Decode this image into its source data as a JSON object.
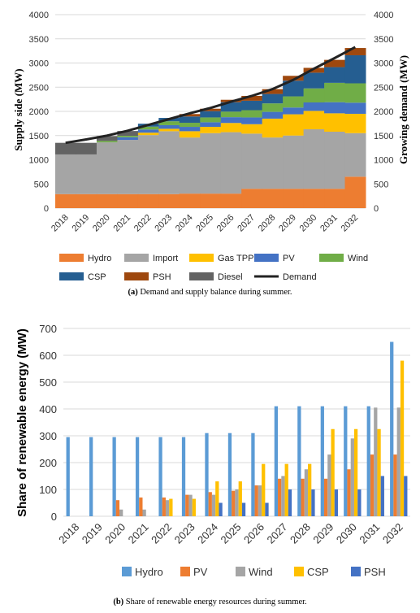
{
  "figure_a": {
    "caption_label": "(a)",
    "caption_text": "Demand and supply balance during summer."
  },
  "figure_b": {
    "caption_label": "(b)",
    "caption_text": "Share of renewable energy resources during summer."
  },
  "chart_data": [
    {
      "type": "area",
      "stacked": true,
      "ylabel": "Supply side (MW)",
      "y2label": "Growing demand (MW)",
      "ylim": [
        0,
        4000
      ],
      "yticks": [
        0,
        500,
        1000,
        1500,
        2000,
        2500,
        3000,
        3500,
        4000
      ],
      "categories": [
        "2018",
        "2019",
        "2020",
        "2021",
        "2022",
        "2023",
        "2024",
        "2025",
        "2026",
        "2027",
        "2028",
        "2029",
        "2030",
        "2031",
        "2032"
      ],
      "legend_position": "bottom",
      "series": [
        {
          "name": "Hydro",
          "color": "#ED7D31",
          "values": [
            290,
            290,
            290,
            290,
            290,
            290,
            300,
            300,
            300,
            400,
            400,
            400,
            400,
            400,
            650
          ]
        },
        {
          "name": "Import",
          "color": "#A5A5A5",
          "values": [
            820,
            820,
            1070,
            1120,
            1220,
            1300,
            1160,
            1250,
            1270,
            1140,
            1060,
            1100,
            1230,
            1180,
            900
          ]
        },
        {
          "name": "Gas TPP",
          "color": "#FFC000",
          "values": [
            0,
            0,
            0,
            0,
            50,
            50,
            130,
            130,
            190,
            195,
            390,
            440,
            380,
            380,
            400
          ]
        },
        {
          "name": "PV",
          "color": "#4472C4",
          "values": [
            0,
            0,
            0,
            55,
            65,
            75,
            90,
            95,
            120,
            140,
            140,
            140,
            175,
            230,
            230
          ]
        },
        {
          "name": "Wind",
          "color": "#70AD47",
          "values": [
            0,
            0,
            30,
            30,
            60,
            80,
            85,
            100,
            115,
            150,
            175,
            230,
            290,
            400,
            400
          ]
        },
        {
          "name": "CSP",
          "color": "#255E91",
          "values": [
            0,
            0,
            0,
            0,
            60,
            70,
            130,
            130,
            195,
            195,
            195,
            325,
            325,
            325,
            580
          ]
        },
        {
          "name": "PSH",
          "color": "#9E480E",
          "values": [
            0,
            0,
            0,
            0,
            0,
            0,
            50,
            50,
            50,
            100,
            100,
            100,
            100,
            150,
            150
          ]
        },
        {
          "name": "Diesel",
          "color": "#636363",
          "values": [
            240,
            240,
            100,
            100,
            0,
            0,
            0,
            0,
            0,
            0,
            0,
            0,
            0,
            0,
            0
          ]
        }
      ],
      "demand": {
        "name": "Demand",
        "color": "#000000",
        "values": [
          1350,
          1420,
          1500,
          1600,
          1720,
          1840,
          1960,
          2070,
          2200,
          2320,
          2460,
          2650,
          2880,
          3100,
          3330
        ]
      }
    },
    {
      "type": "bar",
      "ylabel": "Share of renewable energy (MW)",
      "ylim": [
        0,
        700
      ],
      "yticks": [
        0,
        100,
        200,
        300,
        400,
        500,
        600,
        700
      ],
      "categories": [
        "2018",
        "2019",
        "2020",
        "2021",
        "2022",
        "2023",
        "2024",
        "2025",
        "2026",
        "2027",
        "2028",
        "2029",
        "2030",
        "2031",
        "2032"
      ],
      "legend_position": "bottom",
      "series": [
        {
          "name": "Hydro",
          "color": "#5B9BD5",
          "values": [
            295,
            295,
            295,
            295,
            295,
            295,
            310,
            310,
            310,
            410,
            410,
            410,
            410,
            410,
            650
          ]
        },
        {
          "name": "PV",
          "color": "#ED7D31",
          "values": [
            0,
            0,
            60,
            70,
            70,
            80,
            90,
            95,
            115,
            140,
            140,
            140,
            175,
            230,
            230
          ]
        },
        {
          "name": "Wind",
          "color": "#A5A5A5",
          "values": [
            0,
            0,
            25,
            25,
            60,
            80,
            80,
            100,
            115,
            150,
            175,
            230,
            290,
            405,
            405
          ]
        },
        {
          "name": "CSP",
          "color": "#FFC000",
          "values": [
            0,
            0,
            0,
            0,
            65,
            65,
            130,
            130,
            195,
            195,
            195,
            325,
            325,
            325,
            580
          ]
        },
        {
          "name": "PSH",
          "color": "#4472C4",
          "values": [
            0,
            0,
            0,
            0,
            0,
            0,
            50,
            50,
            50,
            100,
            100,
            100,
            100,
            150,
            150
          ]
        }
      ]
    }
  ]
}
